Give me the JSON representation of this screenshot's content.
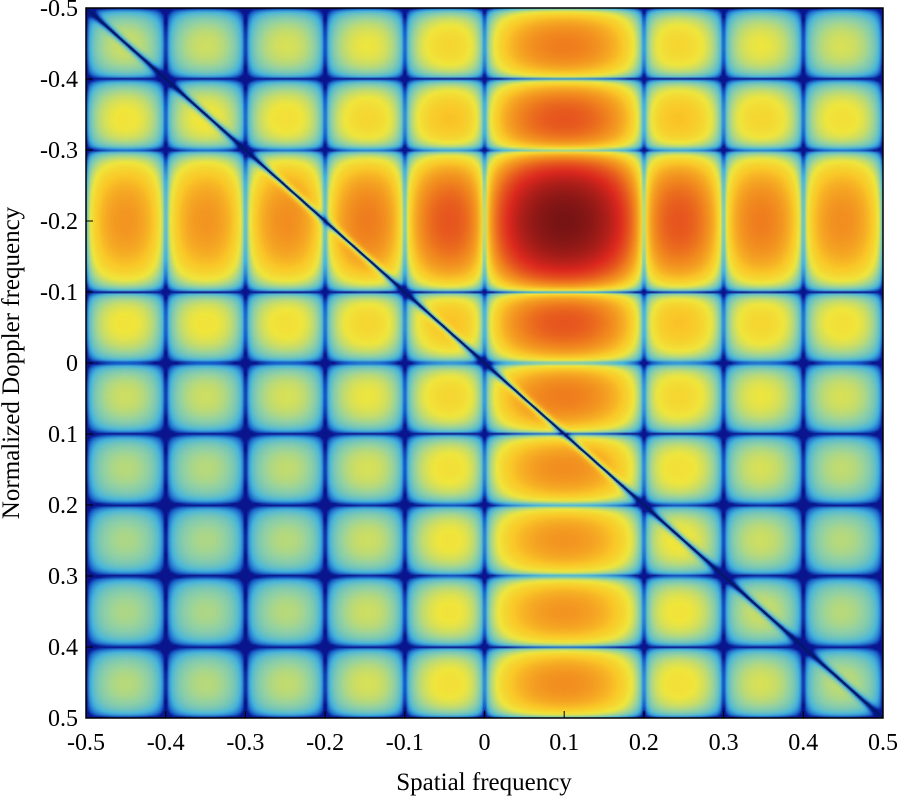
{
  "chart_data": {
    "type": "heatmap",
    "title": "",
    "xlabel": "Spatial frequency",
    "ylabel": "Normalized Doppler frequency",
    "xlim": [
      -0.5,
      0.5
    ],
    "ylim": [
      -0.5,
      0.5
    ],
    "y_axis_direction": "reversed (-0.5 at top, 0.5 at bottom)",
    "x_ticks": [
      "-0.5",
      "-0.4",
      "-0.3",
      "-0.2",
      "-0.1",
      "0",
      "0.1",
      "0.2",
      "0.3",
      "0.4",
      "0.5"
    ],
    "y_ticks": [
      "-0.5",
      "-0.4",
      "-0.3",
      "-0.2",
      "-0.1",
      "0",
      "0.1",
      "0.2",
      "0.3",
      "0.4",
      "0.5"
    ],
    "grid": false,
    "colormap": "jet (blue-cyan-yellow-red-dark red)",
    "colorbar": false,
    "features": {
      "main_peak": {
        "x": 0.1,
        "y": -0.2
      },
      "null_line": {
        "from": [
          -0.5,
          -0.5
        ],
        "to": [
          0.5,
          0.5
        ]
      },
      "sidelobe_spacing": 0.1
    }
  }
}
